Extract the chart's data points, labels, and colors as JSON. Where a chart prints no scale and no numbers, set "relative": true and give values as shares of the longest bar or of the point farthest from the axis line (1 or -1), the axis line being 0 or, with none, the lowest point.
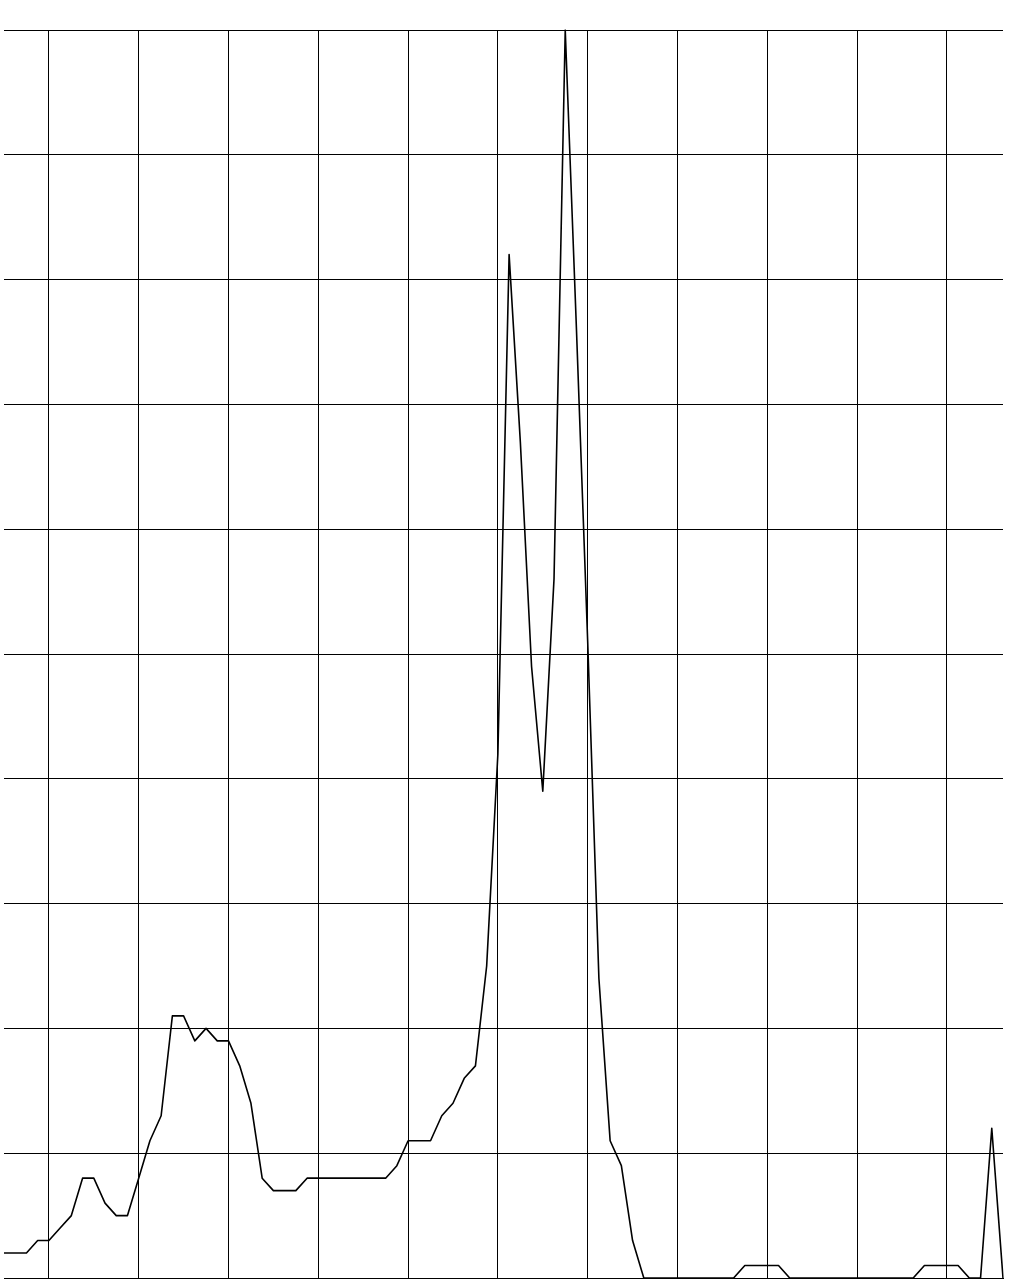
{
  "chart_data": {
    "type": "line",
    "relative": true,
    "grid": true,
    "legend": false,
    "marker": "none",
    "line_style": "solid",
    "categories": [
      null,
      null,
      null,
      null,
      null,
      null,
      null,
      null,
      null,
      null,
      null,
      null,
      null,
      null,
      null,
      null,
      null,
      null,
      null,
      null,
      null,
      null,
      null,
      null,
      null,
      null,
      null,
      null,
      null,
      null,
      null,
      null,
      null,
      null,
      null,
      null,
      null,
      null,
      null,
      null,
      null,
      null,
      null,
      null,
      null,
      null,
      null,
      null,
      null,
      null,
      null,
      null,
      null,
      null,
      null,
      null,
      null,
      null,
      null,
      null,
      null,
      null,
      null,
      null,
      null,
      null,
      null,
      null,
      null,
      null,
      null,
      null,
      null,
      null,
      null,
      null,
      null,
      null,
      null,
      null,
      null,
      null,
      null,
      null,
      null,
      null,
      null,
      null,
      null,
      null
    ],
    "series": [
      {
        "color": "#000000",
        "values": [
          0.02,
          0.02,
          0.02,
          0.03,
          0.03,
          0.04,
          0.05,
          0.08,
          0.08,
          0.06,
          0.05,
          0.05,
          0.08,
          0.11,
          0.13,
          0.21,
          0.21,
          0.19,
          0.2,
          0.19,
          0.19,
          0.17,
          0.14,
          0.08,
          0.07,
          0.07,
          0.07,
          0.08,
          0.08,
          0.08,
          0.08,
          0.08,
          0.08,
          0.08,
          0.08,
          0.09,
          0.11,
          0.11,
          0.11,
          0.13,
          0.14,
          0.16,
          0.17,
          0.25,
          0.42,
          0.82,
          0.67,
          0.49,
          0.39,
          0.56,
          1,
          0.76,
          0.51,
          0.24,
          0.11,
          0.09,
          0.03,
          0,
          0,
          0,
          0,
          0,
          0,
          0,
          0,
          0,
          0.01,
          0.01,
          0.01,
          0.01,
          0,
          0,
          0,
          0,
          0,
          0,
          0,
          0,
          0,
          0,
          0,
          0,
          0.01,
          0.01,
          0.01,
          0.01,
          0,
          0,
          0.12,
          0
        ]
      }
    ]
  }
}
